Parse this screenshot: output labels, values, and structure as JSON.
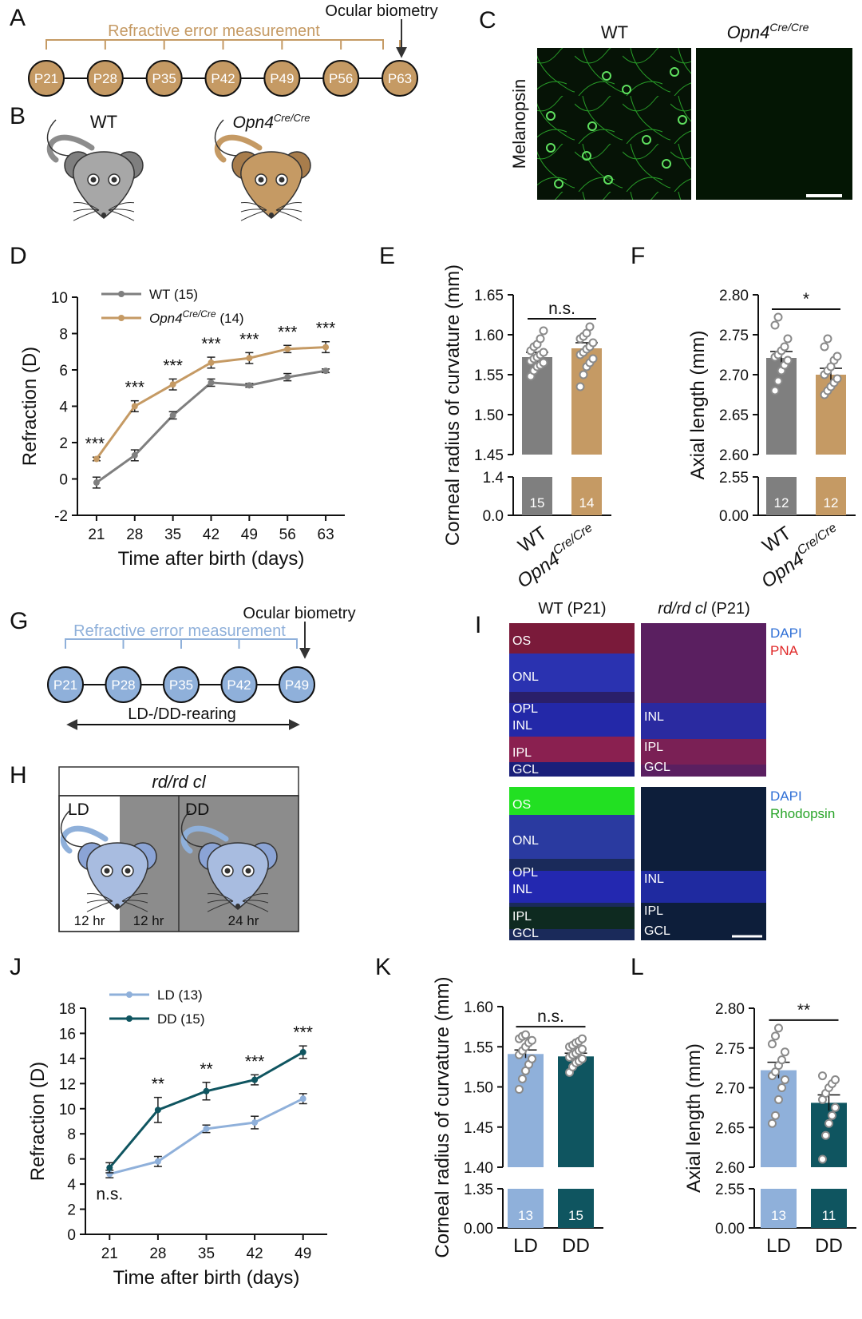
{
  "colors": {
    "wt": "#7f7f7f",
    "opn4": "#c59a64",
    "ld": "#8fb0da",
    "dd": "#0f5560",
    "opn4_node": "#c59a64",
    "ld_node": "#8fb0da"
  },
  "panel_labels": {
    "a": "A",
    "b": "B",
    "c": "C",
    "d": "D",
    "e": "E",
    "f": "F",
    "g": "G",
    "h": "H",
    "i": "I",
    "j": "J",
    "k": "K",
    "l": "L"
  },
  "a": {
    "bracket_label": "Refractive error measurement",
    "arrow_label": "Ocular biometry",
    "nodes": [
      "P21",
      "P28",
      "P35",
      "P42",
      "P49",
      "P56",
      "P63"
    ]
  },
  "b": {
    "wt_label": "WT",
    "opn4_label": "Opn4",
    "opn4_sup": "Cre/Cre"
  },
  "c": {
    "col_wt": "WT",
    "col_opn4": "Opn4",
    "col_opn4_sup": "Cre/Cre",
    "row_label": "Melanopsin"
  },
  "g": {
    "bracket_label": "Refractive error measurement",
    "arrow_label": "Ocular biometry",
    "nodes": [
      "P21",
      "P28",
      "P35",
      "P42",
      "P49"
    ],
    "span_label": "LD-/DD-rearing"
  },
  "h": {
    "title": "rd/rd cl",
    "ld": "LD",
    "dd": "DD",
    "t1": "12 hr",
    "t2": "12 hr",
    "t3": "24 hr"
  },
  "i": {
    "col1": "WT (P21)",
    "col2": "rd/rd cl",
    "col2_suffix": " (P21)",
    "legend_top_1": "DAPI",
    "legend_top_2": "PNA",
    "legend_bot_1": "DAPI",
    "legend_bot_2": "Rhodopsin",
    "wt_layers": [
      "OS",
      "ONL",
      "OPL",
      "INL",
      "IPL",
      "GCL"
    ],
    "rd_layers": [
      "INL",
      "IPL",
      "GCL"
    ]
  },
  "chart_data": [
    {
      "panel": "D",
      "type": "line",
      "x": [
        21,
        28,
        35,
        42,
        49,
        56,
        63
      ],
      "xlabel": "Time after birth (days)",
      "ylabel": "Refraction (D)",
      "ylim": [
        -2,
        10
      ],
      "yticks": [
        "-2",
        "0",
        "2",
        "4",
        "6",
        "8",
        "10"
      ],
      "series": [
        {
          "name": "WT",
          "n": "(15)",
          "values": [
            -0.2,
            1.3,
            3.5,
            5.3,
            5.15,
            5.6,
            5.95
          ],
          "errors": [
            0.3,
            0.3,
            0.2,
            0.2,
            0.1,
            0.2,
            0.1
          ]
        },
        {
          "name": "Opn4",
          "name_sup": "Cre/Cre",
          "n": "(14)",
          "values": [
            1.1,
            4.0,
            5.2,
            6.4,
            6.65,
            7.15,
            7.25
          ],
          "errors": [
            0.1,
            0.3,
            0.3,
            0.3,
            0.3,
            0.2,
            0.3
          ]
        }
      ],
      "annotations": [
        "***",
        "***",
        "***",
        "***",
        "***",
        "***",
        "***"
      ]
    },
    {
      "panel": "E",
      "type": "bar",
      "categories": [
        "WT",
        "Opn4"
      ],
      "category_sup": [
        "",
        "Cre/Cre"
      ],
      "values": [
        1.572,
        1.583
      ],
      "errors": [
        0.006,
        0.007
      ],
      "n": [
        "15",
        "14"
      ],
      "ylabel": "Corneal radius of curvature (mm)",
      "ylim_upper": [
        1.45,
        1.65
      ],
      "yticks_upper": [
        "1.45",
        "1.50",
        "1.55",
        "1.60",
        "1.65"
      ],
      "yticks_lower": [
        "0.0",
        "1.4"
      ],
      "significance": "n.s.",
      "points": [
        [
          1.548,
          1.555,
          1.56,
          1.562,
          1.565,
          1.567,
          1.57,
          1.572,
          1.575,
          1.578,
          1.58,
          1.585,
          1.588,
          1.595,
          1.605
        ],
        [
          1.535,
          1.55,
          1.56,
          1.565,
          1.57,
          1.575,
          1.578,
          1.582,
          1.585,
          1.59,
          1.595,
          1.598,
          1.602,
          1.61
        ]
      ]
    },
    {
      "panel": "F",
      "type": "bar",
      "categories": [
        "WT",
        "Opn4"
      ],
      "category_sup": [
        "",
        "Cre/Cre"
      ],
      "values": [
        2.721,
        2.7
      ],
      "errors": [
        0.008,
        0.008
      ],
      "n": [
        "12",
        "12"
      ],
      "ylabel": "Axial length (mm)",
      "ylim_upper": [
        2.6,
        2.8
      ],
      "yticks_upper": [
        "2.60",
        "2.65",
        "2.70",
        "2.75",
        "2.80"
      ],
      "yticks_lower": [
        "0.00",
        "2.55"
      ],
      "significance": "*",
      "points": [
        [
          2.68,
          2.692,
          2.705,
          2.712,
          2.718,
          2.722,
          2.725,
          2.73,
          2.735,
          2.745,
          2.762,
          2.772
        ],
        [
          2.675,
          2.68,
          2.685,
          2.69,
          2.695,
          2.7,
          2.705,
          2.71,
          2.718,
          2.723,
          2.735,
          2.745
        ]
      ]
    },
    {
      "panel": "J",
      "type": "line",
      "x": [
        21,
        28,
        35,
        42,
        49
      ],
      "xlabel": "Time after birth (days)",
      "ylabel": "Refraction (D)",
      "ylim": [
        0,
        18
      ],
      "yticks": [
        "0",
        "2",
        "4",
        "6",
        "8",
        "10",
        "12",
        "14",
        "16",
        "18"
      ],
      "series": [
        {
          "name": "LD",
          "n": "(13)",
          "values": [
            4.8,
            5.8,
            8.4,
            8.9,
            10.8
          ],
          "errors": [
            0.3,
            0.4,
            0.3,
            0.5,
            0.4
          ]
        },
        {
          "name": "DD",
          "n": "(15)",
          "values": [
            5.3,
            9.9,
            11.4,
            12.3,
            14.5
          ],
          "errors": [
            0.4,
            1.0,
            0.7,
            0.4,
            0.5
          ]
        }
      ],
      "annotations": [
        "n.s.",
        "**",
        "**",
        "***",
        "***"
      ]
    },
    {
      "panel": "K",
      "type": "bar",
      "categories": [
        "LD",
        "DD"
      ],
      "values": [
        1.541,
        1.538
      ],
      "errors": [
        0.005,
        0.004
      ],
      "n": [
        "13",
        "15"
      ],
      "ylabel": "Corneal radius of curvature (mm)",
      "ylim_upper": [
        1.4,
        1.6
      ],
      "yticks_upper": [
        "1.40",
        "1.45",
        "1.50",
        "1.55",
        "1.60"
      ],
      "yticks_lower": [
        "0.00",
        "1.35"
      ],
      "significance": "n.s.",
      "points": [
        [
          1.497,
          1.51,
          1.52,
          1.528,
          1.535,
          1.54,
          1.545,
          1.55,
          1.555,
          1.558,
          1.56,
          1.563,
          1.565
        ],
        [
          1.518,
          1.525,
          1.53,
          1.532,
          1.535,
          1.537,
          1.54,
          1.542,
          1.545,
          1.547,
          1.55,
          1.552,
          1.555,
          1.557,
          1.56
        ]
      ]
    },
    {
      "panel": "L",
      "type": "bar",
      "categories": [
        "LD",
        "DD"
      ],
      "values": [
        2.722,
        2.681
      ],
      "errors": [
        0.01,
        0.01
      ],
      "n": [
        "13",
        "11"
      ],
      "ylabel": "Axial length (mm)",
      "ylim_upper": [
        2.6,
        2.8
      ],
      "yticks_upper": [
        "2.60",
        "2.65",
        "2.70",
        "2.75",
        "2.80"
      ],
      "yticks_lower": [
        "0.00",
        "2.55"
      ],
      "significance": "**",
      "points": [
        [
          2.655,
          2.665,
          2.685,
          2.7,
          2.71,
          2.715,
          2.72,
          2.728,
          2.735,
          2.745,
          2.755,
          2.765,
          2.775
        ],
        [
          2.61,
          2.64,
          2.655,
          2.665,
          2.675,
          2.685,
          2.693,
          2.7,
          2.705,
          2.71,
          2.715
        ]
      ]
    }
  ]
}
